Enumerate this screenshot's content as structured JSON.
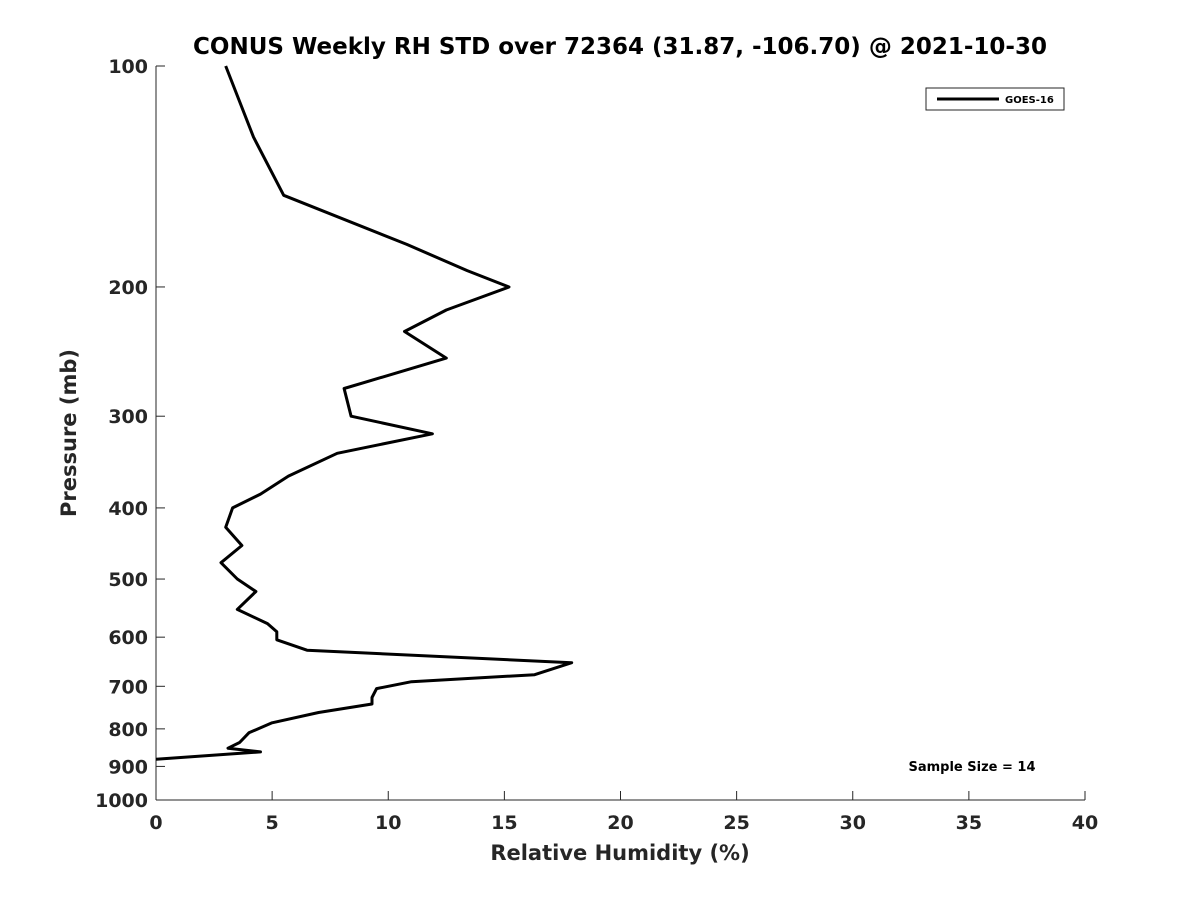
{
  "chart_data": {
    "type": "line",
    "title": "CONUS Weekly RH STD over 72364 (31.87, -106.70) @ 2021-10-30",
    "xlabel": "Relative Humidity (%)",
    "ylabel": "Pressure (mb)",
    "xlim": [
      0,
      40
    ],
    "ylim": [
      100,
      1000
    ],
    "y_scale": "log",
    "y_reversed": true,
    "grid": false,
    "x_ticks": [
      0,
      5,
      10,
      15,
      20,
      25,
      30,
      35,
      40
    ],
    "x_tick_labels": [
      "0",
      "5",
      "10",
      "15",
      "20",
      "25",
      "30",
      "35",
      "40"
    ],
    "y_ticks": [
      100,
      200,
      300,
      400,
      500,
      600,
      700,
      800,
      900,
      1000
    ],
    "y_tick_labels": [
      "100",
      "200",
      "300",
      "400",
      "500",
      "600",
      "700",
      "800",
      "900",
      "1000"
    ],
    "legend": {
      "placement": "top-right",
      "entries": [
        "GOES-16"
      ]
    },
    "annotation": "Sample Size = 14",
    "series": [
      {
        "name": "GOES-16",
        "color": "#000000",
        "points": [
          {
            "x": 3.0,
            "y": 100
          },
          {
            "x": 4.2,
            "y": 125
          },
          {
            "x": 5.5,
            "y": 150
          },
          {
            "x": 10.8,
            "y": 175
          },
          {
            "x": 13.4,
            "y": 190
          },
          {
            "x": 15.2,
            "y": 200
          },
          {
            "x": 12.5,
            "y": 215
          },
          {
            "x": 10.7,
            "y": 230
          },
          {
            "x": 12.5,
            "y": 250
          },
          {
            "x": 8.1,
            "y": 275
          },
          {
            "x": 8.4,
            "y": 300
          },
          {
            "x": 11.9,
            "y": 317
          },
          {
            "x": 7.8,
            "y": 337
          },
          {
            "x": 5.7,
            "y": 362
          },
          {
            "x": 4.5,
            "y": 383
          },
          {
            "x": 3.3,
            "y": 400
          },
          {
            "x": 3.0,
            "y": 425
          },
          {
            "x": 3.7,
            "y": 450
          },
          {
            "x": 2.8,
            "y": 475
          },
          {
            "x": 3.5,
            "y": 500
          },
          {
            "x": 4.3,
            "y": 520
          },
          {
            "x": 3.5,
            "y": 550
          },
          {
            "x": 4.8,
            "y": 575
          },
          {
            "x": 5.2,
            "y": 590
          },
          {
            "x": 5.2,
            "y": 605
          },
          {
            "x": 6.5,
            "y": 625
          },
          {
            "x": 17.9,
            "y": 650
          },
          {
            "x": 16.3,
            "y": 675
          },
          {
            "x": 11.0,
            "y": 690
          },
          {
            "x": 9.5,
            "y": 705
          },
          {
            "x": 9.3,
            "y": 725
          },
          {
            "x": 9.3,
            "y": 740
          },
          {
            "x": 7.0,
            "y": 760
          },
          {
            "x": 5.0,
            "y": 785
          },
          {
            "x": 4.0,
            "y": 810
          },
          {
            "x": 3.6,
            "y": 835
          },
          {
            "x": 3.1,
            "y": 850
          },
          {
            "x": 4.5,
            "y": 860
          },
          {
            "x": 0.0,
            "y": 880
          }
        ]
      }
    ]
  }
}
